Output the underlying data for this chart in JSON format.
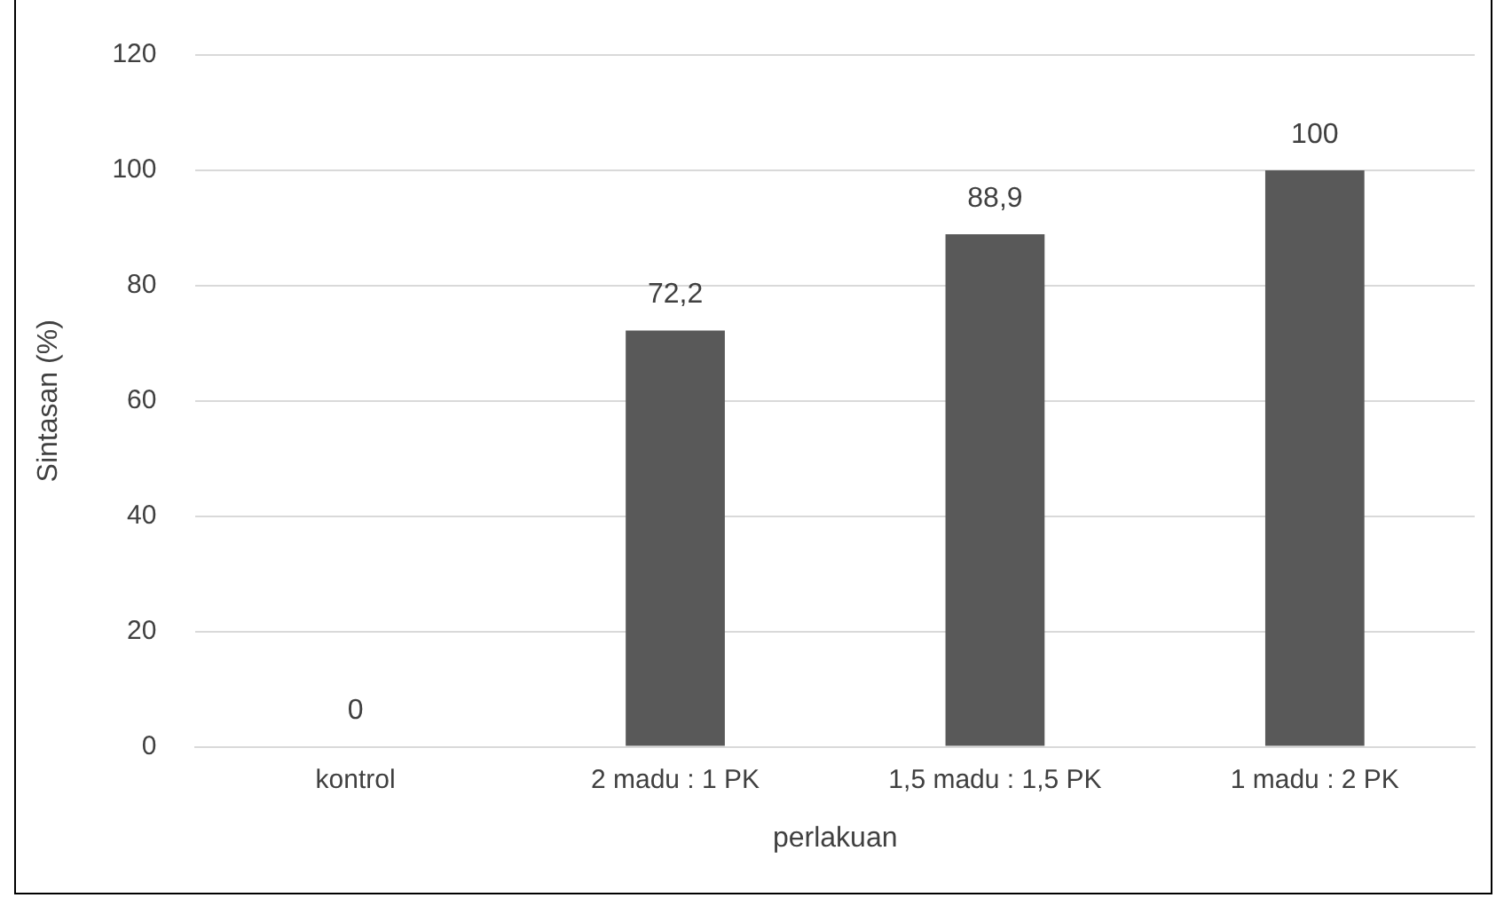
{
  "chart_data": {
    "type": "bar",
    "xlabel": "perlakuan",
    "ylabel": "Sintasan (%)",
    "categories": [
      "kontrol",
      "2 madu : 1 PK",
      "1,5 madu : 1,5 PK",
      "1 madu : 2 PK"
    ],
    "values": [
      0,
      72.2,
      88.9,
      100
    ],
    "value_labels": [
      "0",
      "72,2",
      "88,9",
      "100"
    ],
    "color": "#595959",
    "ylim": [
      0,
      120
    ],
    "yticks": [
      0,
      20,
      40,
      60,
      80,
      100,
      120
    ],
    "grid": "y",
    "legend": false
  }
}
